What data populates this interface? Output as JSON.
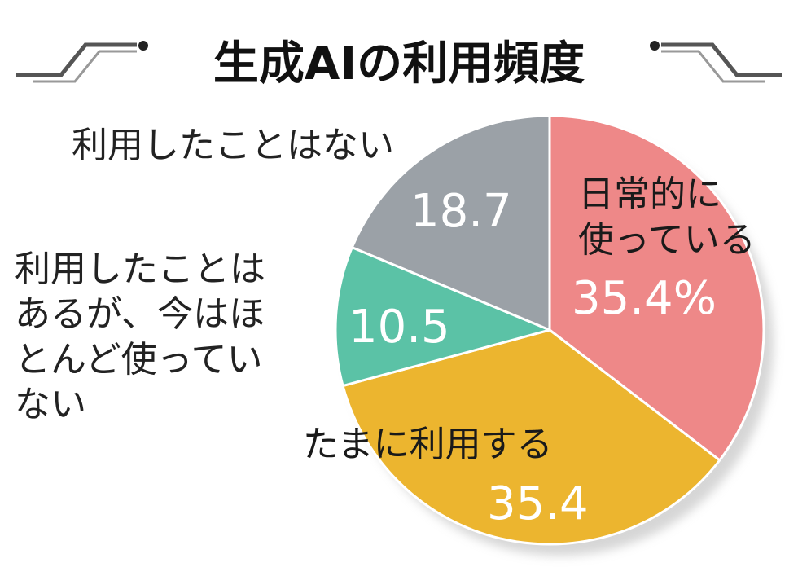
{
  "chart_data": {
    "type": "pie",
    "title": "生成AIの利用頻度",
    "unit": "%",
    "start_angle_deg": 0,
    "direction": "clockwise",
    "slices": [
      {
        "label_lines": [
          "日常的に",
          "使っている"
        ],
        "value": 35.4,
        "value_label": "35.4%",
        "color": "#ee8888"
      },
      {
        "label_lines": [
          "たまに利用する"
        ],
        "value": 35.4,
        "value_label": "35.4",
        "color": "#ecb52f"
      },
      {
        "label_lines": [
          "利用したことは",
          "あるが、今はほ",
          "とんど使ってい",
          "ない"
        ],
        "value": 10.5,
        "value_label": "10.5",
        "color": "#5bc2a6"
      },
      {
        "label_lines": [
          "利用したことはない"
        ],
        "value": 18.7,
        "value_label": "18.7",
        "color": "#9ba1a7"
      }
    ]
  }
}
